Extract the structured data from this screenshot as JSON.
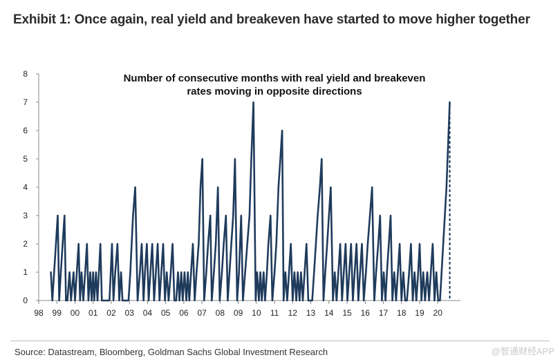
{
  "header": {
    "title": "Exhibit 1: Once again, real yield and breakeven have started to move higher together"
  },
  "footer": {
    "source": "Source: Datastream, Bloomberg, Goldman Sachs Global Investment Research",
    "watermark": "@智通财经APP"
  },
  "colors": {
    "line": "#1f3b5c",
    "axis": "#888888",
    "background": "#ffffff"
  },
  "chart_data": {
    "type": "line",
    "title_lines": [
      "Number of consecutive months with real yield and breakeven",
      "rates moving in opposite directions"
    ],
    "xlabel": "",
    "ylabel": "",
    "x_tick_labels": [
      "98",
      "99",
      "00",
      "01",
      "02",
      "03",
      "04",
      "05",
      "06",
      "07",
      "08",
      "09",
      "10",
      "11",
      "12",
      "13",
      "14",
      "15",
      "16",
      "17",
      "18",
      "19",
      "20"
    ],
    "y_tick_labels": [
      "0",
      "1",
      "2",
      "3",
      "4",
      "5",
      "6",
      "7",
      "8"
    ],
    "xlim": [
      1998,
      2021.25
    ],
    "ylim": [
      0,
      8
    ],
    "grid": false,
    "legend": "none",
    "series": [
      {
        "values": [
          [
            1998.67,
            1
          ],
          [
            1998.75,
            0
          ],
          [
            1998.85,
            1
          ],
          [
            1998.95,
            2
          ],
          [
            1999.05,
            3
          ],
          [
            1999.13,
            0
          ],
          [
            1999.22,
            1
          ],
          [
            1999.32,
            2
          ],
          [
            1999.42,
            3
          ],
          [
            1999.5,
            0
          ],
          [
            1999.58,
            0
          ],
          [
            1999.7,
            1
          ],
          [
            1999.78,
            0
          ],
          [
            1999.92,
            1
          ],
          [
            2000.0,
            0
          ],
          [
            2000.1,
            1
          ],
          [
            2000.2,
            2
          ],
          [
            2000.28,
            0
          ],
          [
            2000.36,
            1
          ],
          [
            2000.46,
            0
          ],
          [
            2000.56,
            1
          ],
          [
            2000.66,
            2
          ],
          [
            2000.74,
            0
          ],
          [
            2000.84,
            1
          ],
          [
            2000.92,
            0
          ],
          [
            2001.0,
            1
          ],
          [
            2001.06,
            0
          ],
          [
            2001.16,
            1
          ],
          [
            2001.24,
            0
          ],
          [
            2001.32,
            1
          ],
          [
            2001.4,
            2
          ],
          [
            2001.48,
            0
          ],
          [
            2001.6,
            0
          ],
          [
            2001.7,
            0
          ],
          [
            2001.9,
            0
          ],
          [
            2001.97,
            1
          ],
          [
            2002.04,
            2
          ],
          [
            2002.12,
            0
          ],
          [
            2002.22,
            1
          ],
          [
            2002.34,
            2
          ],
          [
            2002.44,
            0
          ],
          [
            2002.54,
            1
          ],
          [
            2002.62,
            0
          ],
          [
            2002.75,
            0
          ],
          [
            2002.95,
            0
          ],
          [
            2003.05,
            1
          ],
          [
            2003.2,
            3
          ],
          [
            2003.32,
            4
          ],
          [
            2003.45,
            0
          ],
          [
            2003.58,
            1
          ],
          [
            2003.68,
            2
          ],
          [
            2003.78,
            0
          ],
          [
            2003.86,
            1
          ],
          [
            2003.96,
            2
          ],
          [
            2004.06,
            0
          ],
          [
            2004.16,
            1
          ],
          [
            2004.26,
            2
          ],
          [
            2004.36,
            0
          ],
          [
            2004.46,
            1
          ],
          [
            2004.56,
            2
          ],
          [
            2004.66,
            0
          ],
          [
            2004.76,
            1
          ],
          [
            2004.86,
            2
          ],
          [
            2004.96,
            0
          ],
          [
            2005.06,
            1
          ],
          [
            2005.16,
            0
          ],
          [
            2005.28,
            1
          ],
          [
            2005.38,
            2
          ],
          [
            2005.48,
            0
          ],
          [
            2005.58,
            0
          ],
          [
            2005.68,
            1
          ],
          [
            2005.76,
            0
          ],
          [
            2005.86,
            1
          ],
          [
            2005.94,
            0
          ],
          [
            2006.04,
            1
          ],
          [
            2006.14,
            0
          ],
          [
            2006.22,
            1
          ],
          [
            2006.3,
            0
          ],
          [
            2006.4,
            1
          ],
          [
            2006.5,
            2
          ],
          [
            2006.6,
            0
          ],
          [
            2006.7,
            1
          ],
          [
            2006.82,
            2
          ],
          [
            2006.92,
            4
          ],
          [
            2007.02,
            5
          ],
          [
            2007.12,
            0
          ],
          [
            2007.24,
            1
          ],
          [
            2007.34,
            2
          ],
          [
            2007.46,
            3
          ],
          [
            2007.54,
            0
          ],
          [
            2007.66,
            1
          ],
          [
            2007.76,
            2
          ],
          [
            2007.88,
            4
          ],
          [
            2007.98,
            0
          ],
          [
            2008.1,
            1
          ],
          [
            2008.2,
            2
          ],
          [
            2008.32,
            3
          ],
          [
            2008.42,
            0
          ],
          [
            2008.52,
            1
          ],
          [
            2008.62,
            2
          ],
          [
            2008.72,
            3
          ],
          [
            2008.82,
            5
          ],
          [
            2008.94,
            0
          ],
          [
            2009.04,
            1
          ],
          [
            2009.16,
            3
          ],
          [
            2009.26,
            0
          ],
          [
            2009.38,
            1
          ],
          [
            2009.5,
            2
          ],
          [
            2009.62,
            3
          ],
          [
            2009.72,
            5
          ],
          [
            2009.84,
            7
          ],
          [
            2009.96,
            0
          ],
          [
            2010.04,
            1
          ],
          [
            2010.14,
            0
          ],
          [
            2010.22,
            1
          ],
          [
            2010.3,
            0
          ],
          [
            2010.4,
            1
          ],
          [
            2010.48,
            0
          ],
          [
            2010.58,
            1
          ],
          [
            2010.66,
            2
          ],
          [
            2010.78,
            3
          ],
          [
            2010.88,
            0
          ],
          [
            2011.0,
            1
          ],
          [
            2011.1,
            2
          ],
          [
            2011.22,
            4
          ],
          [
            2011.32,
            5
          ],
          [
            2011.42,
            6
          ],
          [
            2011.5,
            0
          ],
          [
            2011.6,
            1
          ],
          [
            2011.7,
            0
          ],
          [
            2011.8,
            1
          ],
          [
            2011.9,
            2
          ],
          [
            2012.0,
            0
          ],
          [
            2012.1,
            1
          ],
          [
            2012.2,
            0
          ],
          [
            2012.28,
            1
          ],
          [
            2012.38,
            0
          ],
          [
            2012.46,
            1
          ],
          [
            2012.56,
            0
          ],
          [
            2012.66,
            1
          ],
          [
            2012.76,
            2
          ],
          [
            2012.86,
            0
          ],
          [
            2012.96,
            0
          ],
          [
            2013.08,
            0
          ],
          [
            2013.18,
            1
          ],
          [
            2013.28,
            2
          ],
          [
            2013.38,
            3
          ],
          [
            2013.5,
            4
          ],
          [
            2013.6,
            5
          ],
          [
            2013.7,
            0
          ],
          [
            2013.8,
            1
          ],
          [
            2013.9,
            2
          ],
          [
            2014.0,
            3
          ],
          [
            2014.1,
            4
          ],
          [
            2014.22,
            0
          ],
          [
            2014.32,
            1
          ],
          [
            2014.42,
            0
          ],
          [
            2014.52,
            1
          ],
          [
            2014.62,
            2
          ],
          [
            2014.72,
            0
          ],
          [
            2014.82,
            1
          ],
          [
            2014.92,
            2
          ],
          [
            2015.02,
            0
          ],
          [
            2015.12,
            1
          ],
          [
            2015.22,
            2
          ],
          [
            2015.32,
            0
          ],
          [
            2015.42,
            1
          ],
          [
            2015.52,
            2
          ],
          [
            2015.62,
            0
          ],
          [
            2015.72,
            1
          ],
          [
            2015.82,
            2
          ],
          [
            2015.92,
            0
          ],
          [
            2016.04,
            1
          ],
          [
            2016.14,
            2
          ],
          [
            2016.26,
            3
          ],
          [
            2016.38,
            4
          ],
          [
            2016.5,
            0
          ],
          [
            2016.6,
            1
          ],
          [
            2016.72,
            2
          ],
          [
            2016.82,
            3
          ],
          [
            2016.92,
            0
          ],
          [
            2017.02,
            1
          ],
          [
            2017.12,
            0
          ],
          [
            2017.2,
            1
          ],
          [
            2017.3,
            2
          ],
          [
            2017.4,
            3
          ],
          [
            2017.5,
            0
          ],
          [
            2017.6,
            1
          ],
          [
            2017.7,
            0
          ],
          [
            2017.8,
            1
          ],
          [
            2017.9,
            2
          ],
          [
            2018.0,
            0
          ],
          [
            2018.1,
            1
          ],
          [
            2018.2,
            0
          ],
          [
            2018.3,
            0
          ],
          [
            2018.42,
            1
          ],
          [
            2018.52,
            2
          ],
          [
            2018.62,
            0
          ],
          [
            2018.72,
            1
          ],
          [
            2018.82,
            0
          ],
          [
            2018.92,
            1
          ],
          [
            2019.0,
            2
          ],
          [
            2019.1,
            0
          ],
          [
            2019.2,
            1
          ],
          [
            2019.3,
            0
          ],
          [
            2019.42,
            1
          ],
          [
            2019.52,
            0
          ],
          [
            2019.62,
            1
          ],
          [
            2019.72,
            2
          ],
          [
            2019.82,
            0
          ],
          [
            2019.92,
            1
          ],
          [
            2020.02,
            0
          ],
          [
            2020.12,
            0
          ],
          [
            2020.3,
            2
          ],
          [
            2020.48,
            4
          ],
          [
            2020.66,
            7
          ]
        ]
      }
    ],
    "dashed_projection": [
      [
        2020.66,
        7
      ],
      [
        2020.66,
        0
      ]
    ]
  }
}
